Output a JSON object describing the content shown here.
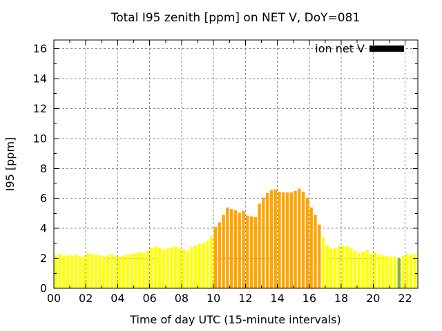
{
  "chart_data": {
    "type": "bar",
    "title": "Total I95 zenith [ppm] on NET V, DoY=081",
    "xlabel": "Time of day UTC (15-minute intervals)",
    "ylabel": "I95 [ppm]",
    "legend": {
      "label": "ion net V",
      "swatch_color": "#000000"
    },
    "time_start": "00:00",
    "interval_minutes": 15,
    "x_tick_values": [
      0,
      2,
      4,
      6,
      8,
      10,
      12,
      14,
      16,
      18,
      20,
      22
    ],
    "x_tick_labels": [
      "00",
      "02",
      "04",
      "06",
      "08",
      "10",
      "12",
      "14",
      "16",
      "18",
      "20",
      "22"
    ],
    "y_tick_values": [
      0,
      2,
      4,
      6,
      8,
      10,
      12,
      14,
      16
    ],
    "y_tick_labels": [
      "0",
      "2",
      "4",
      "6",
      "8",
      "10",
      "12",
      "14",
      "16"
    ],
    "xlim": [
      0,
      22.8
    ],
    "ylim": [
      0,
      16.58
    ],
    "grid": true,
    "legend_position": "top-right",
    "palette": {
      "y": "#ffff00",
      "o": "#ffa500",
      "g": "#7cb342"
    },
    "color_codes": "yyyyyyyyyyyyyyyyyyyyyyyyyyyyyyyyyyyyyyyyoooooooooooooooooooooooooooyyyyyyyyyyyyyyyyyyygyyyyy",
    "values": [
      2.2,
      2.3,
      2.15,
      2.2,
      2.2,
      2.25,
      2.15,
      2.1,
      2.35,
      2.3,
      2.25,
      2.2,
      2.1,
      2.2,
      2.3,
      2.15,
      2.1,
      2.2,
      2.25,
      2.3,
      2.35,
      2.4,
      2.35,
      2.5,
      2.7,
      2.8,
      2.7,
      2.6,
      2.65,
      2.75,
      2.8,
      2.65,
      2.6,
      2.5,
      2.75,
      2.85,
      2.95,
      3.05,
      3.15,
      3.45,
      4.1,
      4.4,
      4.9,
      5.4,
      5.3,
      5.2,
      5.05,
      5.15,
      4.85,
      4.8,
      4.75,
      5.65,
      6.05,
      6.35,
      6.55,
      6.6,
      6.45,
      6.4,
      6.4,
      6.4,
      6.5,
      6.65,
      6.45,
      6.05,
      5.4,
      4.9,
      4.25,
      3.4,
      2.85,
      2.65,
      2.7,
      2.85,
      2.8,
      2.8,
      2.65,
      2.5,
      2.35,
      2.45,
      2.55,
      2.3,
      2.4,
      2.25,
      2.2,
      2.15,
      2.1,
      2.1,
      2.0,
      2.15,
      2.3,
      2.25,
      2.3,
      2.25
    ]
  }
}
